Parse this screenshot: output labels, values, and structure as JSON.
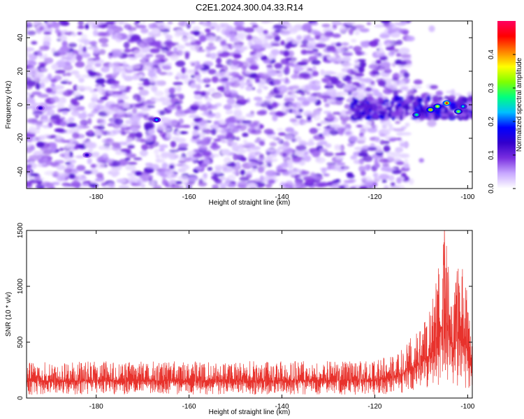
{
  "title": "C2E1.2024.300.04.33.R14",
  "chart_data": [
    {
      "type": "heatmap",
      "xlabel": "Height of straight line (km)",
      "ylabel": "Frequency (Hz)",
      "xlim": [
        -195,
        -99
      ],
      "ylim": [
        -50,
        50
      ],
      "xticks": [
        -180,
        -160,
        -140,
        -120,
        -100
      ],
      "yticks": [
        -40,
        -20,
        0,
        20,
        40
      ],
      "xtick_labels": [
        "-180",
        "-160",
        "-140",
        "-120",
        "-100"
      ],
      "ytick_labels": [
        "-40",
        "-20",
        "0",
        "20",
        "40"
      ],
      "colorbar": {
        "label": "Normalized spectral amplitude",
        "range": [
          0,
          0.5
        ],
        "ticks": [
          0.0,
          0.1,
          0.2,
          0.3,
          0.4
        ],
        "tick_labels": [
          "0.0",
          "0.1",
          "0.2",
          "0.3",
          "0.4"
        ],
        "colors": [
          "#ffffff",
          "#c8a8ff",
          "#7a2fe0",
          "#3300cc",
          "#0000ff",
          "#00bfff",
          "#00ff80",
          "#80ff00",
          "#ffff00",
          "#ff8000",
          "#ff0000",
          "#ff0060"
        ]
      },
      "hotspots": [
        {
          "x": -111,
          "y": -6,
          "value": 0.28
        },
        {
          "x": -108,
          "y": -3,
          "value": 0.4
        },
        {
          "x": -106.5,
          "y": -1,
          "value": 0.35
        },
        {
          "x": -104.5,
          "y": 1,
          "value": 0.45
        },
        {
          "x": -102,
          "y": -4,
          "value": 0.32
        },
        {
          "x": -101,
          "y": -1,
          "value": 0.25
        },
        {
          "x": -167,
          "y": -9,
          "value": 0.22
        },
        {
          "x": -182,
          "y": -30,
          "value": 0.15
        },
        {
          "x": -192,
          "y": -2,
          "value": 0.15
        }
      ]
    },
    {
      "type": "line",
      "xlabel": "Height of straight line (km)",
      "ylabel": "SNR (10 * v/v)",
      "xlim": [
        -195,
        -99
      ],
      "ylim": [
        0,
        1500
      ],
      "xticks": [
        -180,
        -160,
        -140,
        -120,
        -100
      ],
      "yticks": [
        0,
        500,
        1000,
        1500
      ],
      "xtick_labels": [
        "-180",
        "-160",
        "-140",
        "-120",
        "-100"
      ],
      "ytick_labels": [
        "0",
        "500",
        "1000",
        "1500"
      ],
      "color": "#e8322c",
      "series_envelope": [
        {
          "x": -195,
          "low": 30,
          "high": 320
        },
        {
          "x": -180,
          "low": 30,
          "high": 330
        },
        {
          "x": -160,
          "low": 30,
          "high": 330
        },
        {
          "x": -140,
          "low": 30,
          "high": 330
        },
        {
          "x": -120,
          "low": 30,
          "high": 330
        },
        {
          "x": -115,
          "low": 40,
          "high": 420
        },
        {
          "x": -112,
          "low": 60,
          "high": 550
        },
        {
          "x": -110,
          "low": 80,
          "high": 650
        },
        {
          "x": -108,
          "low": 100,
          "high": 800
        },
        {
          "x": -106.5,
          "low": 100,
          "high": 1170
        },
        {
          "x": -105,
          "low": 100,
          "high": 1500
        },
        {
          "x": -103,
          "low": 80,
          "high": 900
        },
        {
          "x": -102,
          "low": 80,
          "high": 1260
        },
        {
          "x": -100.5,
          "low": 80,
          "high": 1100
        },
        {
          "x": -99,
          "low": 80,
          "high": 500
        }
      ]
    }
  ]
}
